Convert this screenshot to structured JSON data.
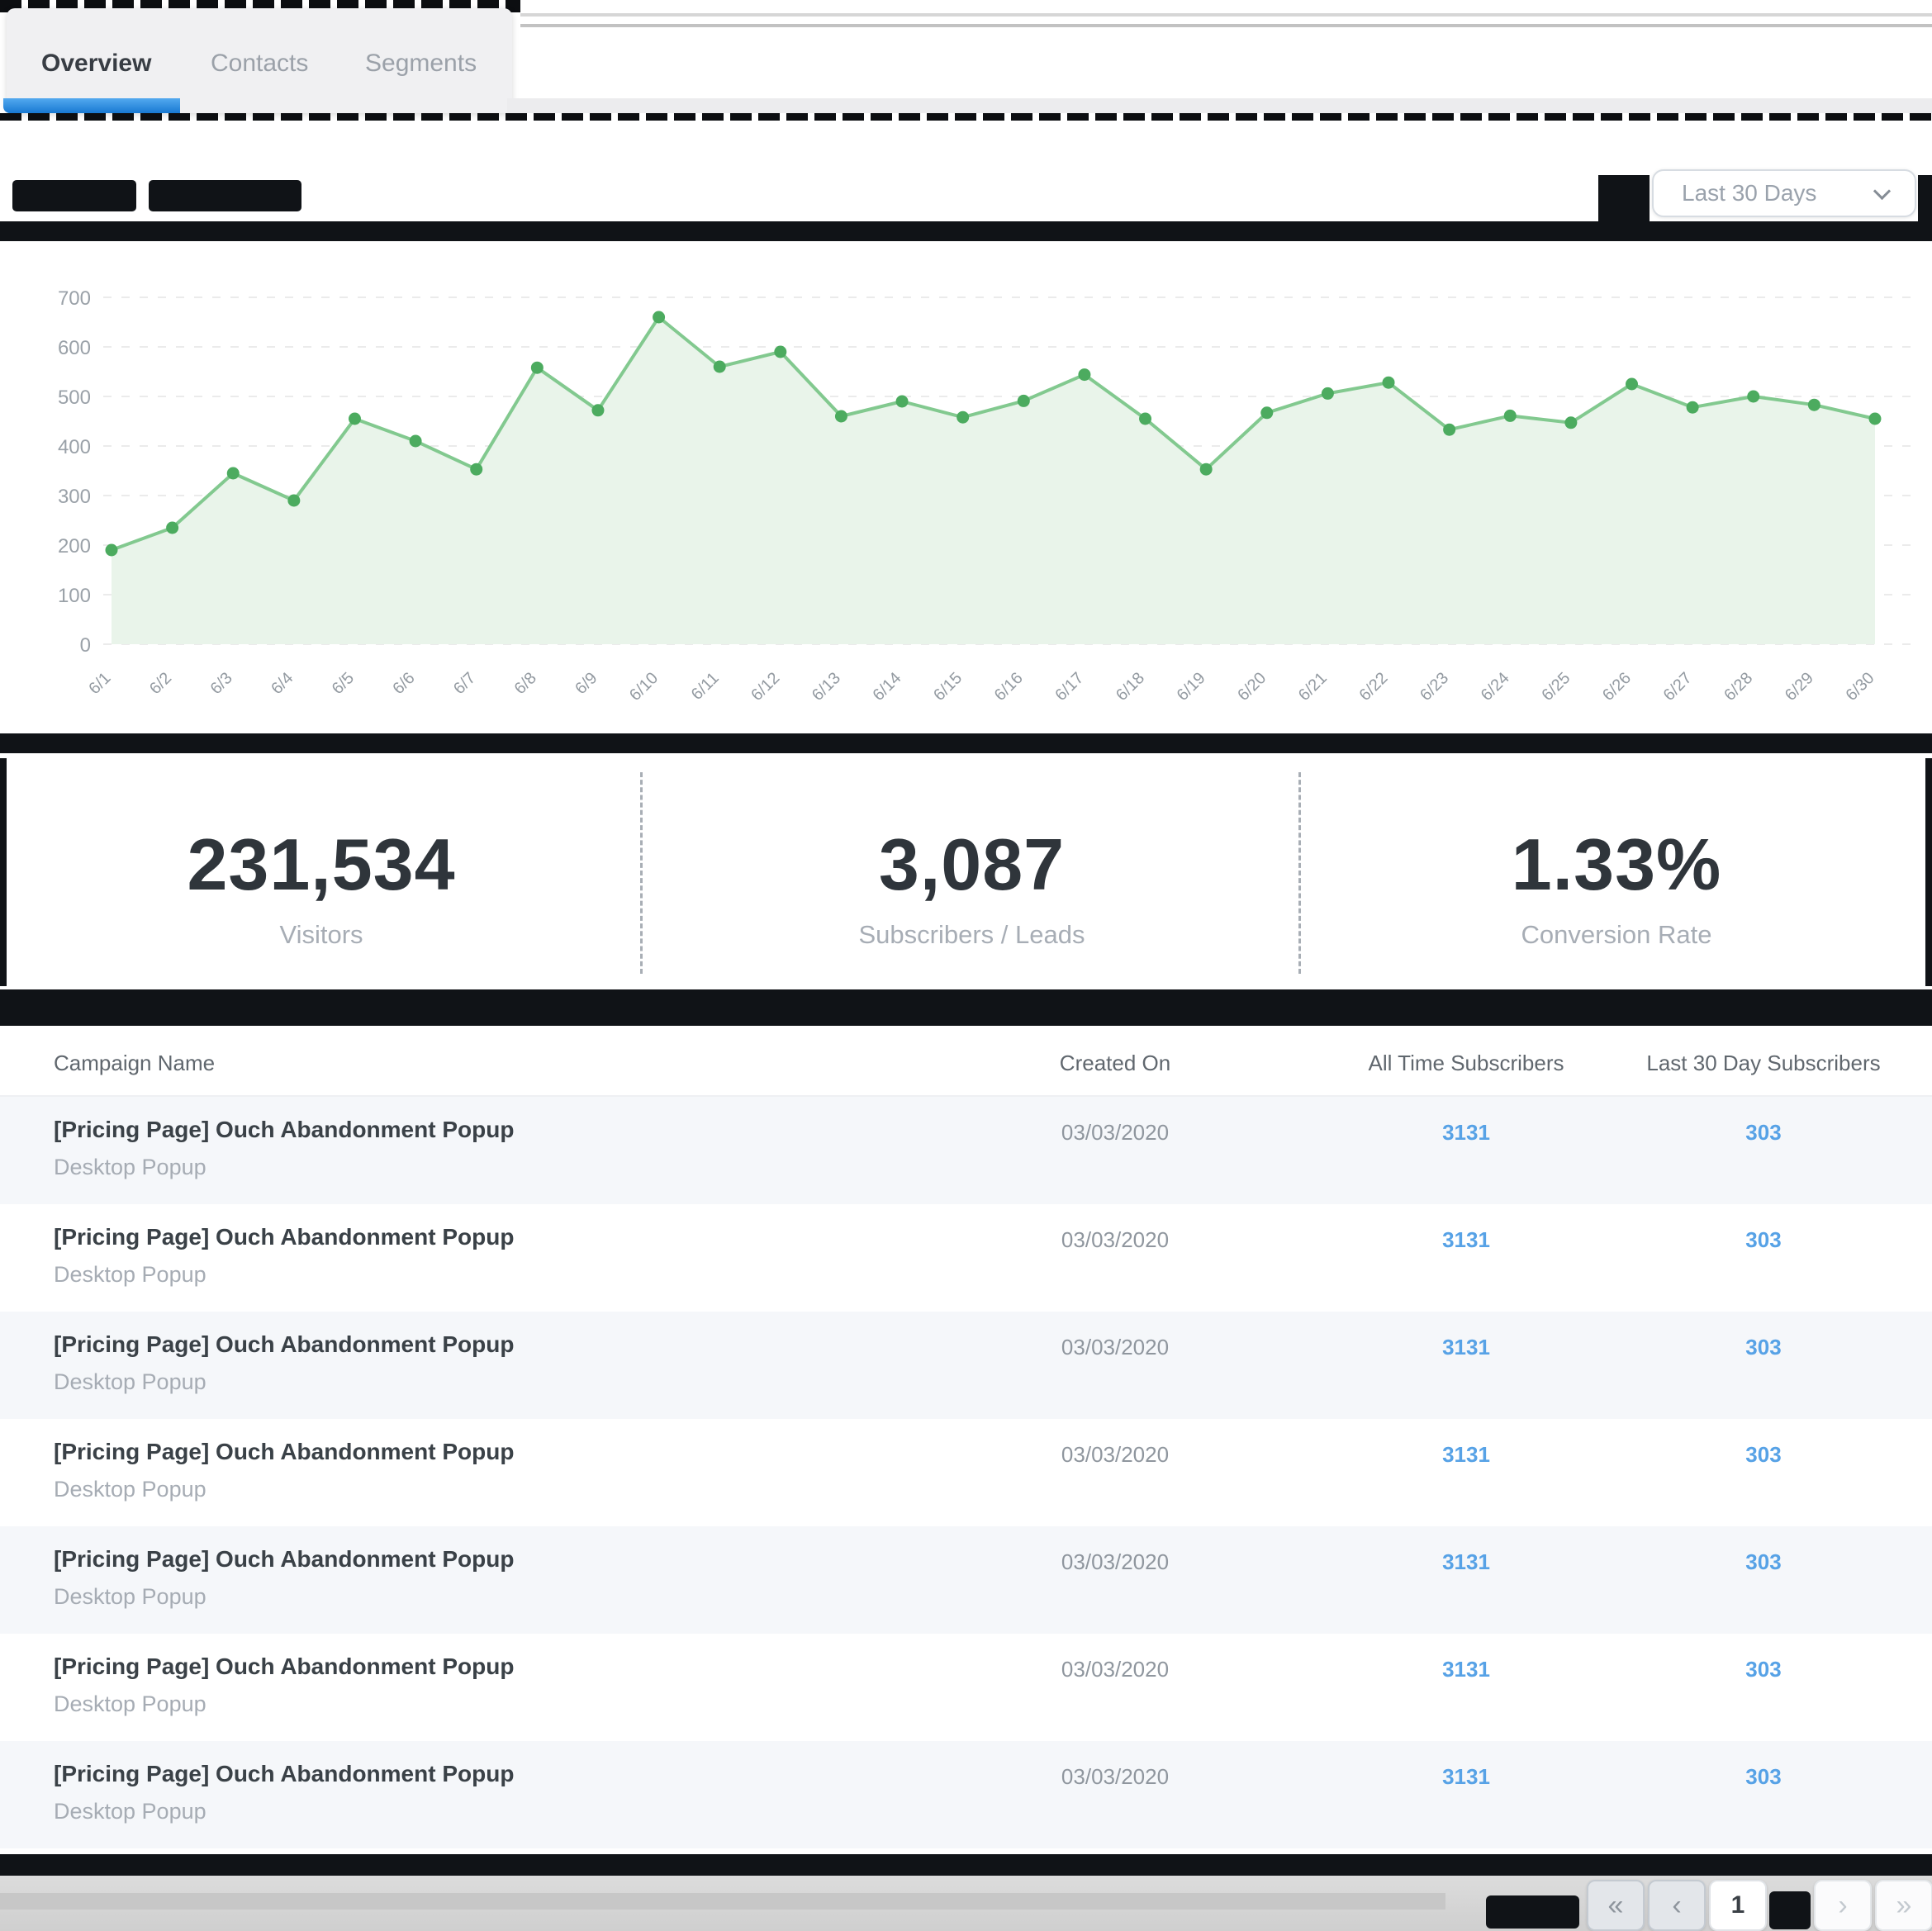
{
  "tabs": {
    "items": [
      {
        "label": "Overview",
        "active": true
      },
      {
        "label": "Contacts",
        "active": false
      },
      {
        "label": "Segments",
        "active": false
      }
    ]
  },
  "chart_header": {
    "range_selector_value": "Last 30 Days"
  },
  "chart_data": {
    "type": "area",
    "title": "",
    "x": [
      "6/1",
      "6/2",
      "6/3",
      "6/4",
      "6/5",
      "6/6",
      "6/7",
      "6/8",
      "6/9",
      "6/10",
      "6/11",
      "6/12",
      "6/13",
      "6/14",
      "6/15",
      "6/16",
      "6/17",
      "6/18",
      "6/19",
      "6/20",
      "6/21",
      "6/22",
      "6/23",
      "6/24",
      "6/25",
      "6/26",
      "6/27",
      "6/28",
      "6/29",
      "6/30"
    ],
    "values": [
      190,
      235,
      345,
      290,
      455,
      410,
      353,
      558,
      472,
      660,
      560,
      590,
      460,
      490,
      458,
      491,
      544,
      455,
      353,
      467,
      506,
      528,
      433,
      461,
      447,
      525,
      478,
      500,
      483,
      455
    ],
    "ylim": [
      0,
      700
    ],
    "yticks": [
      0,
      100,
      200,
      300,
      400,
      500,
      600,
      700
    ],
    "grid": "horizontal-dashed",
    "legend": "none",
    "line_color": "#82c98f",
    "dot_color": "#4cab5f",
    "fill_color": "#e9f4ea"
  },
  "stats": [
    {
      "value": "231,534",
      "label": "Visitors"
    },
    {
      "value": "3,087",
      "label": "Subscribers / Leads"
    },
    {
      "value": "1.33%",
      "label": "Conversion Rate"
    }
  ],
  "table": {
    "columns": [
      "Campaign Name",
      "Created On",
      "All Time Subscribers",
      "Last 30 Day Subscribers"
    ],
    "rows": [
      {
        "name": "[Pricing Page] Ouch Abandonment Popup",
        "subtitle": "Desktop Popup",
        "created_on": "03/03/2020",
        "all_time_subscribers": "3131",
        "last_30_day_subscribers": "303"
      },
      {
        "name": "[Pricing Page] Ouch Abandonment Popup",
        "subtitle": "Desktop Popup",
        "created_on": "03/03/2020",
        "all_time_subscribers": "3131",
        "last_30_day_subscribers": "303"
      },
      {
        "name": "[Pricing Page] Ouch Abandonment Popup",
        "subtitle": "Desktop Popup",
        "created_on": "03/03/2020",
        "all_time_subscribers": "3131",
        "last_30_day_subscribers": "303"
      },
      {
        "name": "[Pricing Page] Ouch Abandonment Popup",
        "subtitle": "Desktop Popup",
        "created_on": "03/03/2020",
        "all_time_subscribers": "3131",
        "last_30_day_subscribers": "303"
      },
      {
        "name": "[Pricing Page] Ouch Abandonment Popup",
        "subtitle": "Desktop Popup",
        "created_on": "03/03/2020",
        "all_time_subscribers": "3131",
        "last_30_day_subscribers": "303"
      },
      {
        "name": "[Pricing Page] Ouch Abandonment Popup",
        "subtitle": "Desktop Popup",
        "created_on": "03/03/2020",
        "all_time_subscribers": "3131",
        "last_30_day_subscribers": "303"
      },
      {
        "name": "[Pricing Page] Ouch Abandonment Popup",
        "subtitle": "Desktop Popup",
        "created_on": "03/03/2020",
        "all_time_subscribers": "3131",
        "last_30_day_subscribers": "303"
      }
    ]
  },
  "pagination": {
    "first": "«",
    "prev": "‹",
    "page": "1",
    "next": "›",
    "last": "»"
  },
  "colors": {
    "accent_blue": "#2e8fe8",
    "link_blue": "#57a2e6",
    "chart_line": "#82c98f",
    "chart_dot": "#4cab5f",
    "chart_fill": "#e9f4ea"
  }
}
